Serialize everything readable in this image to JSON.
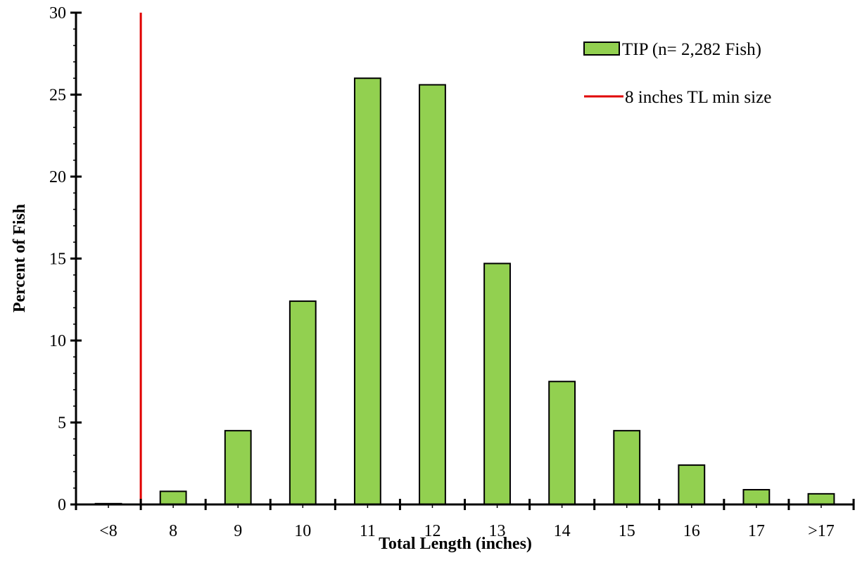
{
  "chart_data": {
    "type": "bar",
    "categories": [
      "<8",
      "8",
      "9",
      "10",
      "11",
      "12",
      "13",
      "14",
      "15",
      "16",
      "17",
      ">17"
    ],
    "series": [
      {
        "name": "TIP (n= 2,282 Fish)",
        "color": "#92D050",
        "values": [
          0.05,
          0.8,
          4.5,
          12.4,
          26.0,
          25.6,
          14.7,
          7.5,
          4.5,
          2.4,
          0.9,
          0.65
        ]
      }
    ],
    "reference_line": {
      "name": "8 inches TL min size",
      "color": "#E00000",
      "position": "between <8 and 8"
    },
    "xlabel": "Total Length (inches)",
    "ylabel": "Percent of Fish",
    "ylim": [
      0,
      30
    ],
    "yticks": [
      "0",
      "5",
      "10",
      "15",
      "20",
      "25",
      "30"
    ],
    "grid": false,
    "legend_position": "top-right"
  }
}
